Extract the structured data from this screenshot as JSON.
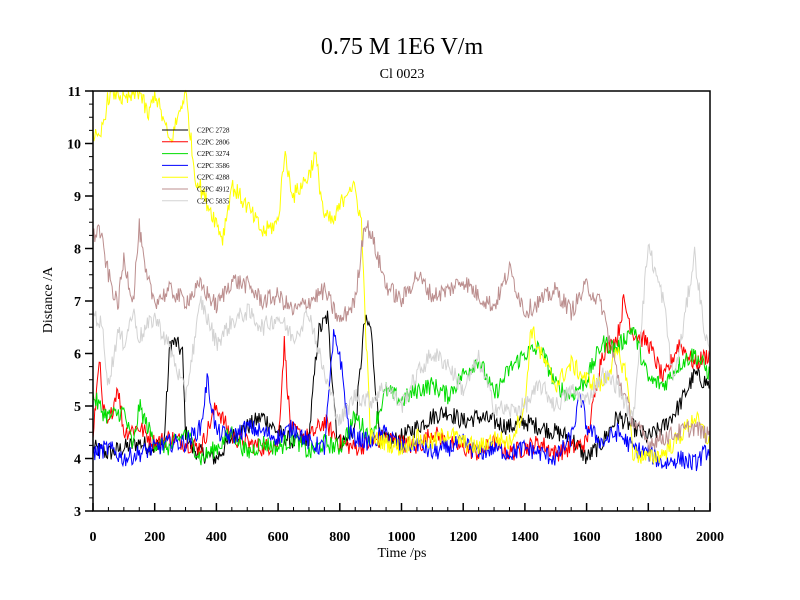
{
  "chart_data": {
    "type": "line",
    "title": "0.75 M 1E6 V/m",
    "subtitle": "Cl 0023",
    "xlabel": "Time /ps",
    "ylabel": "Distance /A",
    "xlim": [
      0,
      2000
    ],
    "ylim": [
      3,
      11
    ],
    "xticks": [
      0,
      200,
      400,
      600,
      800,
      1000,
      1200,
      1400,
      1600,
      1800,
      2000
    ],
    "yticks": [
      3,
      4,
      5,
      6,
      7,
      8,
      9,
      10,
      11
    ],
    "grid": false,
    "legend_position": "top-left",
    "series": [
      {
        "name": "C2PC 2728",
        "color": "#000000",
        "x": [
          0,
          50,
          100,
          150,
          200,
          230,
          250,
          270,
          290,
          300,
          320,
          350,
          400,
          450,
          500,
          550,
          600,
          650,
          700,
          730,
          760,
          790,
          800,
          830,
          850,
          880,
          900,
          930,
          960,
          1000,
          1050,
          1100,
          1150,
          1200,
          1250,
          1300,
          1350,
          1400,
          1450,
          1500,
          1550,
          1600,
          1650,
          1700,
          1750,
          1800,
          1850,
          1900,
          1950,
          2000
        ],
        "y": [
          4.2,
          4.1,
          4.2,
          4.3,
          4.2,
          4.3,
          6.2,
          6.2,
          6.0,
          4.5,
          4.2,
          4.1,
          4.0,
          4.4,
          4.6,
          4.8,
          4.5,
          4.3,
          4.4,
          6.4,
          6.7,
          4.5,
          4.3,
          4.4,
          4.6,
          6.6,
          6.5,
          4.4,
          4.3,
          4.4,
          4.6,
          4.8,
          4.9,
          4.7,
          4.8,
          4.7,
          4.6,
          4.7,
          4.6,
          4.5,
          4.4,
          4.0,
          4.3,
          4.8,
          4.6,
          4.4,
          4.6,
          5.0,
          5.6,
          5.4
        ]
      },
      {
        "name": "C2PC 2806",
        "color": "#ff0000",
        "x": [
          0,
          20,
          30,
          50,
          80,
          100,
          150,
          200,
          250,
          300,
          350,
          400,
          450,
          500,
          550,
          600,
          620,
          640,
          650,
          700,
          750,
          800,
          850,
          900,
          950,
          1000,
          1050,
          1100,
          1150,
          1200,
          1250,
          1300,
          1350,
          1400,
          1450,
          1500,
          1550,
          1600,
          1650,
          1700,
          1720,
          1750,
          1800,
          1850,
          1900,
          1950,
          2000
        ],
        "y": [
          4.3,
          6.0,
          5.0,
          4.6,
          5.4,
          4.5,
          4.6,
          4.3,
          4.4,
          4.3,
          4.2,
          5.0,
          4.4,
          4.3,
          4.2,
          4.3,
          6.2,
          4.6,
          4.5,
          4.4,
          4.7,
          4.3,
          4.2,
          4.3,
          4.4,
          4.3,
          4.2,
          4.5,
          4.3,
          4.2,
          4.1,
          4.3,
          4.1,
          4.2,
          4.3,
          4.1,
          4.2,
          4.3,
          6.0,
          6.3,
          7.0,
          6.4,
          6.2,
          5.5,
          6.2,
          5.8,
          6.0
        ]
      },
      {
        "name": "C2PC 3274",
        "color": "#00dd00",
        "x": [
          0,
          30,
          50,
          100,
          130,
          150,
          170,
          200,
          250,
          300,
          350,
          400,
          450,
          500,
          550,
          600,
          650,
          700,
          750,
          800,
          850,
          900,
          950,
          1000,
          1050,
          1100,
          1150,
          1200,
          1250,
          1300,
          1350,
          1400,
          1450,
          1500,
          1550,
          1600,
          1650,
          1700,
          1750,
          1800,
          1850,
          1900,
          1950,
          2000
        ],
        "y": [
          5.2,
          4.9,
          4.8,
          4.9,
          4.2,
          5.0,
          4.7,
          4.3,
          4.2,
          4.5,
          4.0,
          4.2,
          4.5,
          4.1,
          4.3,
          4.2,
          4.4,
          4.1,
          4.3,
          4.2,
          4.8,
          4.4,
          5.3,
          5.1,
          5.3,
          5.4,
          5.2,
          5.6,
          5.9,
          5.2,
          5.7,
          6.0,
          6.1,
          5.4,
          5.2,
          5.5,
          6.2,
          6.1,
          6.5,
          5.5,
          5.4,
          5.8,
          6.0,
          5.6
        ]
      },
      {
        "name": "C2PC 3586",
        "color": "#0000ff",
        "x": [
          0,
          50,
          100,
          150,
          200,
          250,
          300,
          350,
          370,
          400,
          450,
          500,
          550,
          600,
          650,
          700,
          750,
          780,
          800,
          830,
          850,
          900,
          950,
          1000,
          1050,
          1100,
          1150,
          1200,
          1250,
          1300,
          1350,
          1400,
          1450,
          1500,
          1550,
          1580,
          1600,
          1650,
          1700,
          1750,
          1800,
          1850,
          1900,
          1950,
          2000
        ],
        "y": [
          4.1,
          4.2,
          4.0,
          4.1,
          4.2,
          4.3,
          4.3,
          4.6,
          5.5,
          4.5,
          4.4,
          4.6,
          4.5,
          4.4,
          4.6,
          4.3,
          4.2,
          6.3,
          6.0,
          4.5,
          4.4,
          4.3,
          4.5,
          4.2,
          4.3,
          4.1,
          4.2,
          4.3,
          4.1,
          4.2,
          4.1,
          4.2,
          4.1,
          4.0,
          4.4,
          5.2,
          4.6,
          4.3,
          4.5,
          4.2,
          4.1,
          3.9,
          4.0,
          3.9,
          4.2
        ]
      },
      {
        "name": "C2PC 4288",
        "color": "#ffff00",
        "x": [
          0,
          20,
          50,
          80,
          100,
          150,
          180,
          200,
          250,
          300,
          330,
          360,
          400,
          420,
          450,
          500,
          550,
          600,
          620,
          650,
          700,
          720,
          750,
          780,
          800,
          830,
          850,
          870,
          880,
          900,
          950,
          1000,
          1050,
          1100,
          1150,
          1200,
          1250,
          1300,
          1350,
          1400,
          1420,
          1450,
          1500,
          1550,
          1600,
          1650,
          1700,
          1730,
          1750,
          1800,
          1850,
          1900,
          1950,
          2000
        ],
        "y": [
          10.2,
          10.0,
          10.9,
          11.0,
          10.8,
          11.0,
          10.5,
          11.0,
          10.0,
          11.0,
          9.4,
          9.0,
          8.5,
          8.2,
          9.2,
          8.8,
          8.3,
          8.5,
          9.8,
          9.0,
          9.4,
          9.8,
          8.6,
          8.5,
          8.8,
          9.2,
          9.1,
          8.5,
          7.0,
          4.4,
          4.3,
          4.2,
          4.4,
          4.3,
          4.5,
          4.3,
          4.2,
          4.4,
          4.3,
          5.0,
          6.5,
          6.0,
          5.4,
          5.8,
          5.5,
          5.4,
          6.0,
          5.6,
          4.1,
          4.0,
          4.1,
          4.4,
          4.8,
          4.3
        ]
      },
      {
        "name": "C2PC 4912",
        "color": "#bc8f8f",
        "x": [
          0,
          20,
          50,
          80,
          100,
          130,
          150,
          170,
          200,
          250,
          300,
          350,
          400,
          450,
          500,
          550,
          600,
          650,
          700,
          750,
          800,
          850,
          880,
          900,
          950,
          1000,
          1050,
          1100,
          1150,
          1200,
          1250,
          1300,
          1350,
          1400,
          1450,
          1500,
          1550,
          1600,
          1650,
          1700,
          1750,
          1800,
          1850,
          1900,
          1950,
          2000
        ],
        "y": [
          8.2,
          8.4,
          7.5,
          6.9,
          7.8,
          7.0,
          8.4,
          7.5,
          7.0,
          7.2,
          7.0,
          7.3,
          6.9,
          7.4,
          7.3,
          7.0,
          7.1,
          6.8,
          7.0,
          7.2,
          6.6,
          7.0,
          8.5,
          8.3,
          7.3,
          7.0,
          7.5,
          7.1,
          7.2,
          7.4,
          7.1,
          6.9,
          7.6,
          6.8,
          7.0,
          7.2,
          6.8,
          7.3,
          6.9,
          5.6,
          4.7,
          4.3,
          4.4,
          4.5,
          4.6,
          4.4
        ]
      },
      {
        "name": "C2PC 5835",
        "color": "#d3d3d3",
        "x": [
          0,
          30,
          50,
          80,
          100,
          130,
          150,
          200,
          250,
          300,
          350,
          400,
          450,
          500,
          550,
          600,
          650,
          700,
          750,
          800,
          850,
          900,
          950,
          1000,
          1050,
          1100,
          1150,
          1200,
          1250,
          1300,
          1350,
          1400,
          1450,
          1500,
          1550,
          1600,
          1650,
          1700,
          1750,
          1800,
          1820,
          1850,
          1880,
          1900,
          1950,
          1980,
          2000
        ],
        "y": [
          6.8,
          6.5,
          5.4,
          6.4,
          6.2,
          6.8,
          6.3,
          6.7,
          6.1,
          5.2,
          7.0,
          6.2,
          6.6,
          6.8,
          6.5,
          6.7,
          6.3,
          6.8,
          5.6,
          4.7,
          5.2,
          5.1,
          5.4,
          5.0,
          5.6,
          6.0,
          5.8,
          5.3,
          5.9,
          5.0,
          4.9,
          5.0,
          5.4,
          5.0,
          5.3,
          5.1,
          5.6,
          5.4,
          4.7,
          8.1,
          7.6,
          7.0,
          5.5,
          6.0,
          7.9,
          6.5,
          6.0
        ]
      }
    ]
  }
}
